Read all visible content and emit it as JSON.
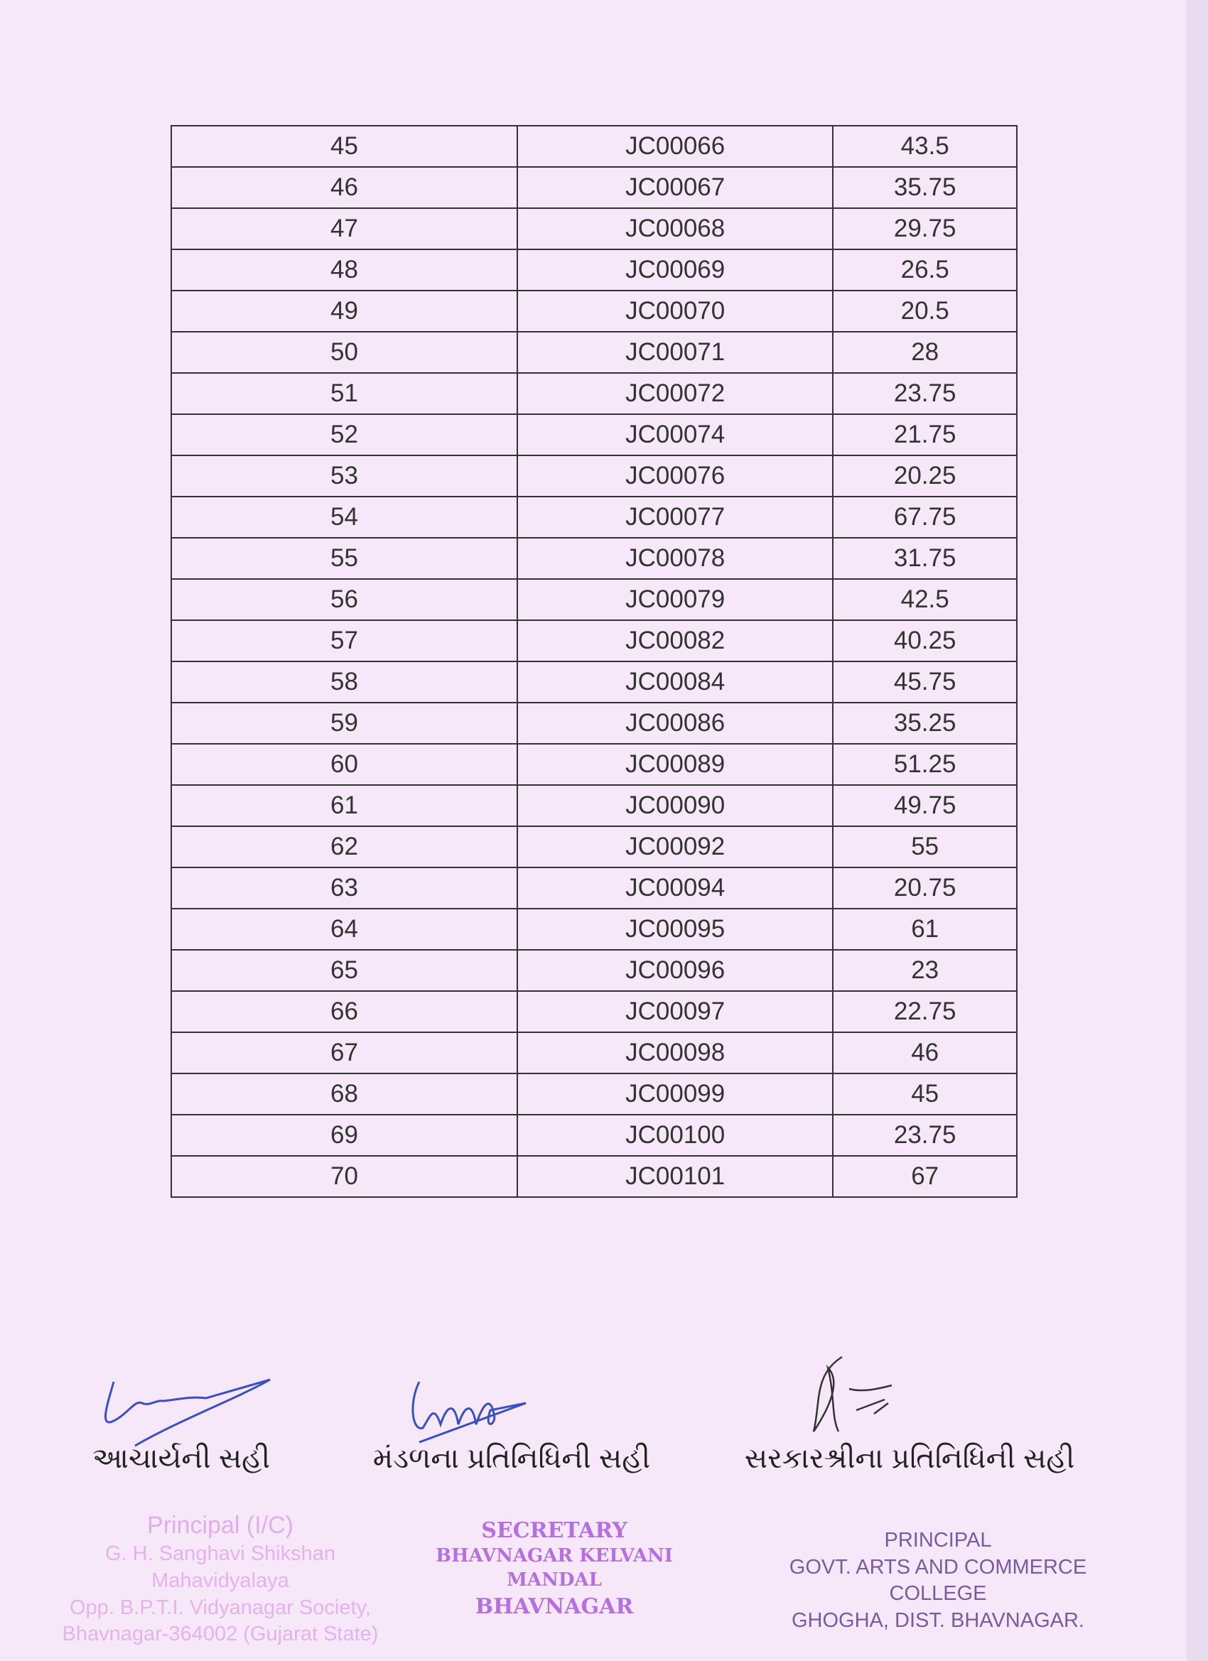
{
  "table": {
    "rows": [
      [
        "45",
        "JC00066",
        "43.5"
      ],
      [
        "46",
        "JC00067",
        "35.75"
      ],
      [
        "47",
        "JC00068",
        "29.75"
      ],
      [
        "48",
        "JC00069",
        "26.5"
      ],
      [
        "49",
        "JC00070",
        "20.5"
      ],
      [
        "50",
        "JC00071",
        "28"
      ],
      [
        "51",
        "JC00072",
        "23.75"
      ],
      [
        "52",
        "JC00074",
        "21.75"
      ],
      [
        "53",
        "JC00076",
        "20.25"
      ],
      [
        "54",
        "JC00077",
        "67.75"
      ],
      [
        "55",
        "JC00078",
        "31.75"
      ],
      [
        "56",
        "JC00079",
        "42.5"
      ],
      [
        "57",
        "JC00082",
        "40.25"
      ],
      [
        "58",
        "JC00084",
        "45.75"
      ],
      [
        "59",
        "JC00086",
        "35.25"
      ],
      [
        "60",
        "JC00089",
        "51.25"
      ],
      [
        "61",
        "JC00090",
        "49.75"
      ],
      [
        "62",
        "JC00092",
        "55"
      ],
      [
        "63",
        "JC00094",
        "20.75"
      ],
      [
        "64",
        "JC00095",
        "61"
      ],
      [
        "65",
        "JC00096",
        "23"
      ],
      [
        "66",
        "JC00097",
        "22.75"
      ],
      [
        "67",
        "JC00098",
        "46"
      ],
      [
        "68",
        "JC00099",
        "45"
      ],
      [
        "69",
        "JC00100",
        "23.75"
      ],
      [
        "70",
        "JC00101",
        "67"
      ]
    ]
  },
  "signatures": {
    "principal_label": "આચાર્યની સહી",
    "mandal_label": "મંડળના પ્રતિનિધિની સહી",
    "government_label": "સરકારશ્રીના પ્રતિનિધિની સહી"
  },
  "stamps": {
    "principal": {
      "title": "Principal (I/C)",
      "lines": [
        "G. H. Sanghavi Shikshan Mahavidyalaya",
        "Opp. B.P.T.I. Vidyanagar Society,",
        "Bhavnagar-364002 (Gujarat State)"
      ]
    },
    "secretary": {
      "title": "SECRETARY",
      "lines": [
        "BHAVNAGAR KELVANI MANDAL",
        "BHAVNAGAR"
      ]
    },
    "govt_principal": {
      "title": "PRINCIPAL",
      "lines": [
        "GOVT. ARTS AND COMMERCE COLLEGE",
        "GHOGHA, DIST. BHAVNAGAR."
      ]
    }
  },
  "colors": {
    "paper": "#f6e8f8",
    "stamp_purple": "#b56fe0",
    "signature_blue": "#3a4fc0"
  }
}
